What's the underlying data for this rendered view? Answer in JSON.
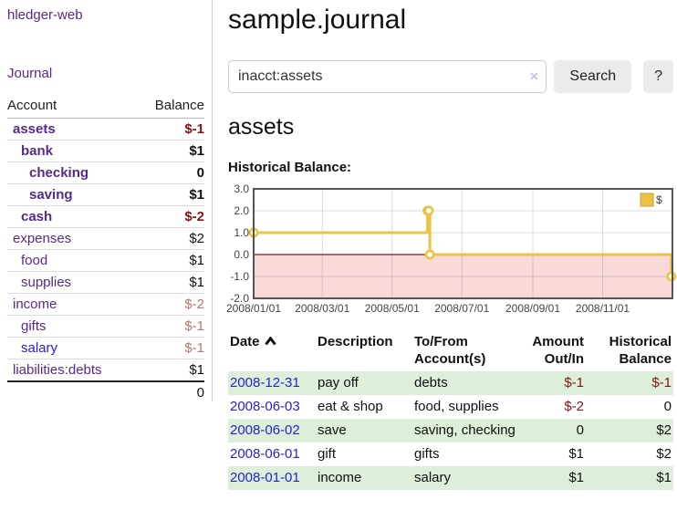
{
  "sidebar": {
    "brand": "hledger-web",
    "journal_link": "Journal",
    "account_header": "Account",
    "balance_header": "Balance",
    "accounts": [
      {
        "name": "assets",
        "depth": 0,
        "bold": true,
        "link_color": "purple",
        "balance": "$-1",
        "balance_style": "neg-strong"
      },
      {
        "name": "bank",
        "depth": 1,
        "bold": true,
        "link_color": "purple",
        "balance": "$1",
        "balance_style": "pos"
      },
      {
        "name": "checking",
        "depth": 2,
        "bold": true,
        "link_color": "purple",
        "balance": "0",
        "balance_style": "pos"
      },
      {
        "name": "saving",
        "depth": 2,
        "bold": true,
        "link_color": "purple",
        "balance": "$1",
        "balance_style": "pos"
      },
      {
        "name": "cash",
        "depth": 1,
        "bold": true,
        "link_color": "purple",
        "balance": "$-2",
        "balance_style": "neg-strong"
      },
      {
        "name": "expenses",
        "depth": 0,
        "bold": false,
        "link_color": "purple",
        "balance": "$2",
        "balance_style": "pos"
      },
      {
        "name": "food",
        "depth": 1,
        "bold": false,
        "link_color": "purple",
        "balance": "$1",
        "balance_style": "pos"
      },
      {
        "name": "supplies",
        "depth": 1,
        "bold": false,
        "link_color": "purple",
        "balance": "$1",
        "balance_style": "pos"
      },
      {
        "name": "income",
        "depth": 0,
        "bold": false,
        "link_color": "purple",
        "balance": "$-2",
        "balance_style": "neg-soft"
      },
      {
        "name": "gifts",
        "depth": 1,
        "bold": false,
        "link_color": "purple",
        "balance": "$-1",
        "balance_style": "neg-soft"
      },
      {
        "name": "salary",
        "depth": 1,
        "bold": false,
        "link_color": "blue",
        "balance": "$-1",
        "balance_style": "neg-soft"
      },
      {
        "name": "liabilities:debts",
        "depth": 0,
        "bold": false,
        "link_color": "purple",
        "balance": "$1",
        "balance_style": "pos"
      }
    ],
    "total": "0"
  },
  "header": {
    "title": "sample.journal"
  },
  "search": {
    "value": "inacct:assets",
    "clear_icon": "×",
    "button_label": "Search",
    "help_label": "?"
  },
  "account_page": {
    "title": "assets",
    "chart_label": "Historical Balance:"
  },
  "chart_data": {
    "type": "line",
    "title": "Historical Balance:",
    "steps": true,
    "series": [
      {
        "name": "$",
        "color": "#edc240",
        "points": [
          [
            "2008-01-01",
            1
          ],
          [
            "2008-06-01",
            2
          ],
          [
            "2008-06-02",
            2
          ],
          [
            "2008-06-03",
            0
          ],
          [
            "2008-12-31",
            -1
          ]
        ]
      }
    ],
    "x_range": [
      "2008-01-01",
      "2009-01-01"
    ],
    "ylim": [
      -2,
      3
    ],
    "yticks": [
      [
        3,
        "3.0"
      ],
      [
        2,
        "2.0"
      ],
      [
        1,
        "1.0"
      ],
      [
        0,
        "0.0"
      ],
      [
        -1,
        "-1.0"
      ],
      [
        -2,
        "-2.0"
      ]
    ],
    "xticks": [
      [
        "2008-01-01",
        "2008/01/01"
      ],
      [
        "2008-03-01",
        "2008/03/01"
      ],
      [
        "2008-05-01",
        "2008/05/01"
      ],
      [
        "2008-07-01",
        "2008/07/01"
      ],
      [
        "2008-09-01",
        "2008/09/01"
      ],
      [
        "2008-11-01",
        "2008/11/01"
      ]
    ],
    "legend_position": "top-right",
    "grid": true,
    "colors": {
      "negative_region": "#f9d8d8",
      "zero_line": "#8b1414",
      "gridline": "rgba(125,125,125,0.28)",
      "border": "#545454"
    }
  },
  "transactions": {
    "headers": {
      "date": "Date",
      "description": "Description",
      "accounts": "To/From Account(s)",
      "amount": "Amount Out/In",
      "balance": "Historical Balance"
    },
    "sort": "date-ascending",
    "rows": [
      {
        "date": "2008-12-31",
        "description": "pay off",
        "accounts": "debts",
        "amount": "$-1",
        "amount_style": "neg-strong",
        "balance": "$-1",
        "balance_style": "neg-strong"
      },
      {
        "date": "2008-06-03",
        "description": "eat & shop",
        "accounts": "food, supplies",
        "amount": "$-2",
        "amount_style": "neg-strong",
        "balance": "0",
        "balance_style": "pos"
      },
      {
        "date": "2008-06-02",
        "description": "save",
        "accounts": "saving, checking",
        "amount": "0",
        "amount_style": "pos",
        "balance": "$2",
        "balance_style": "pos"
      },
      {
        "date": "2008-06-01",
        "description": "gift",
        "accounts": "gifts",
        "amount": "$1",
        "amount_style": "pos",
        "balance": "$2",
        "balance_style": "pos"
      },
      {
        "date": "2008-01-01",
        "description": "income",
        "accounts": "salary",
        "amount": "$1",
        "amount_style": "pos",
        "balance": "$1",
        "balance_style": "pos"
      }
    ]
  }
}
